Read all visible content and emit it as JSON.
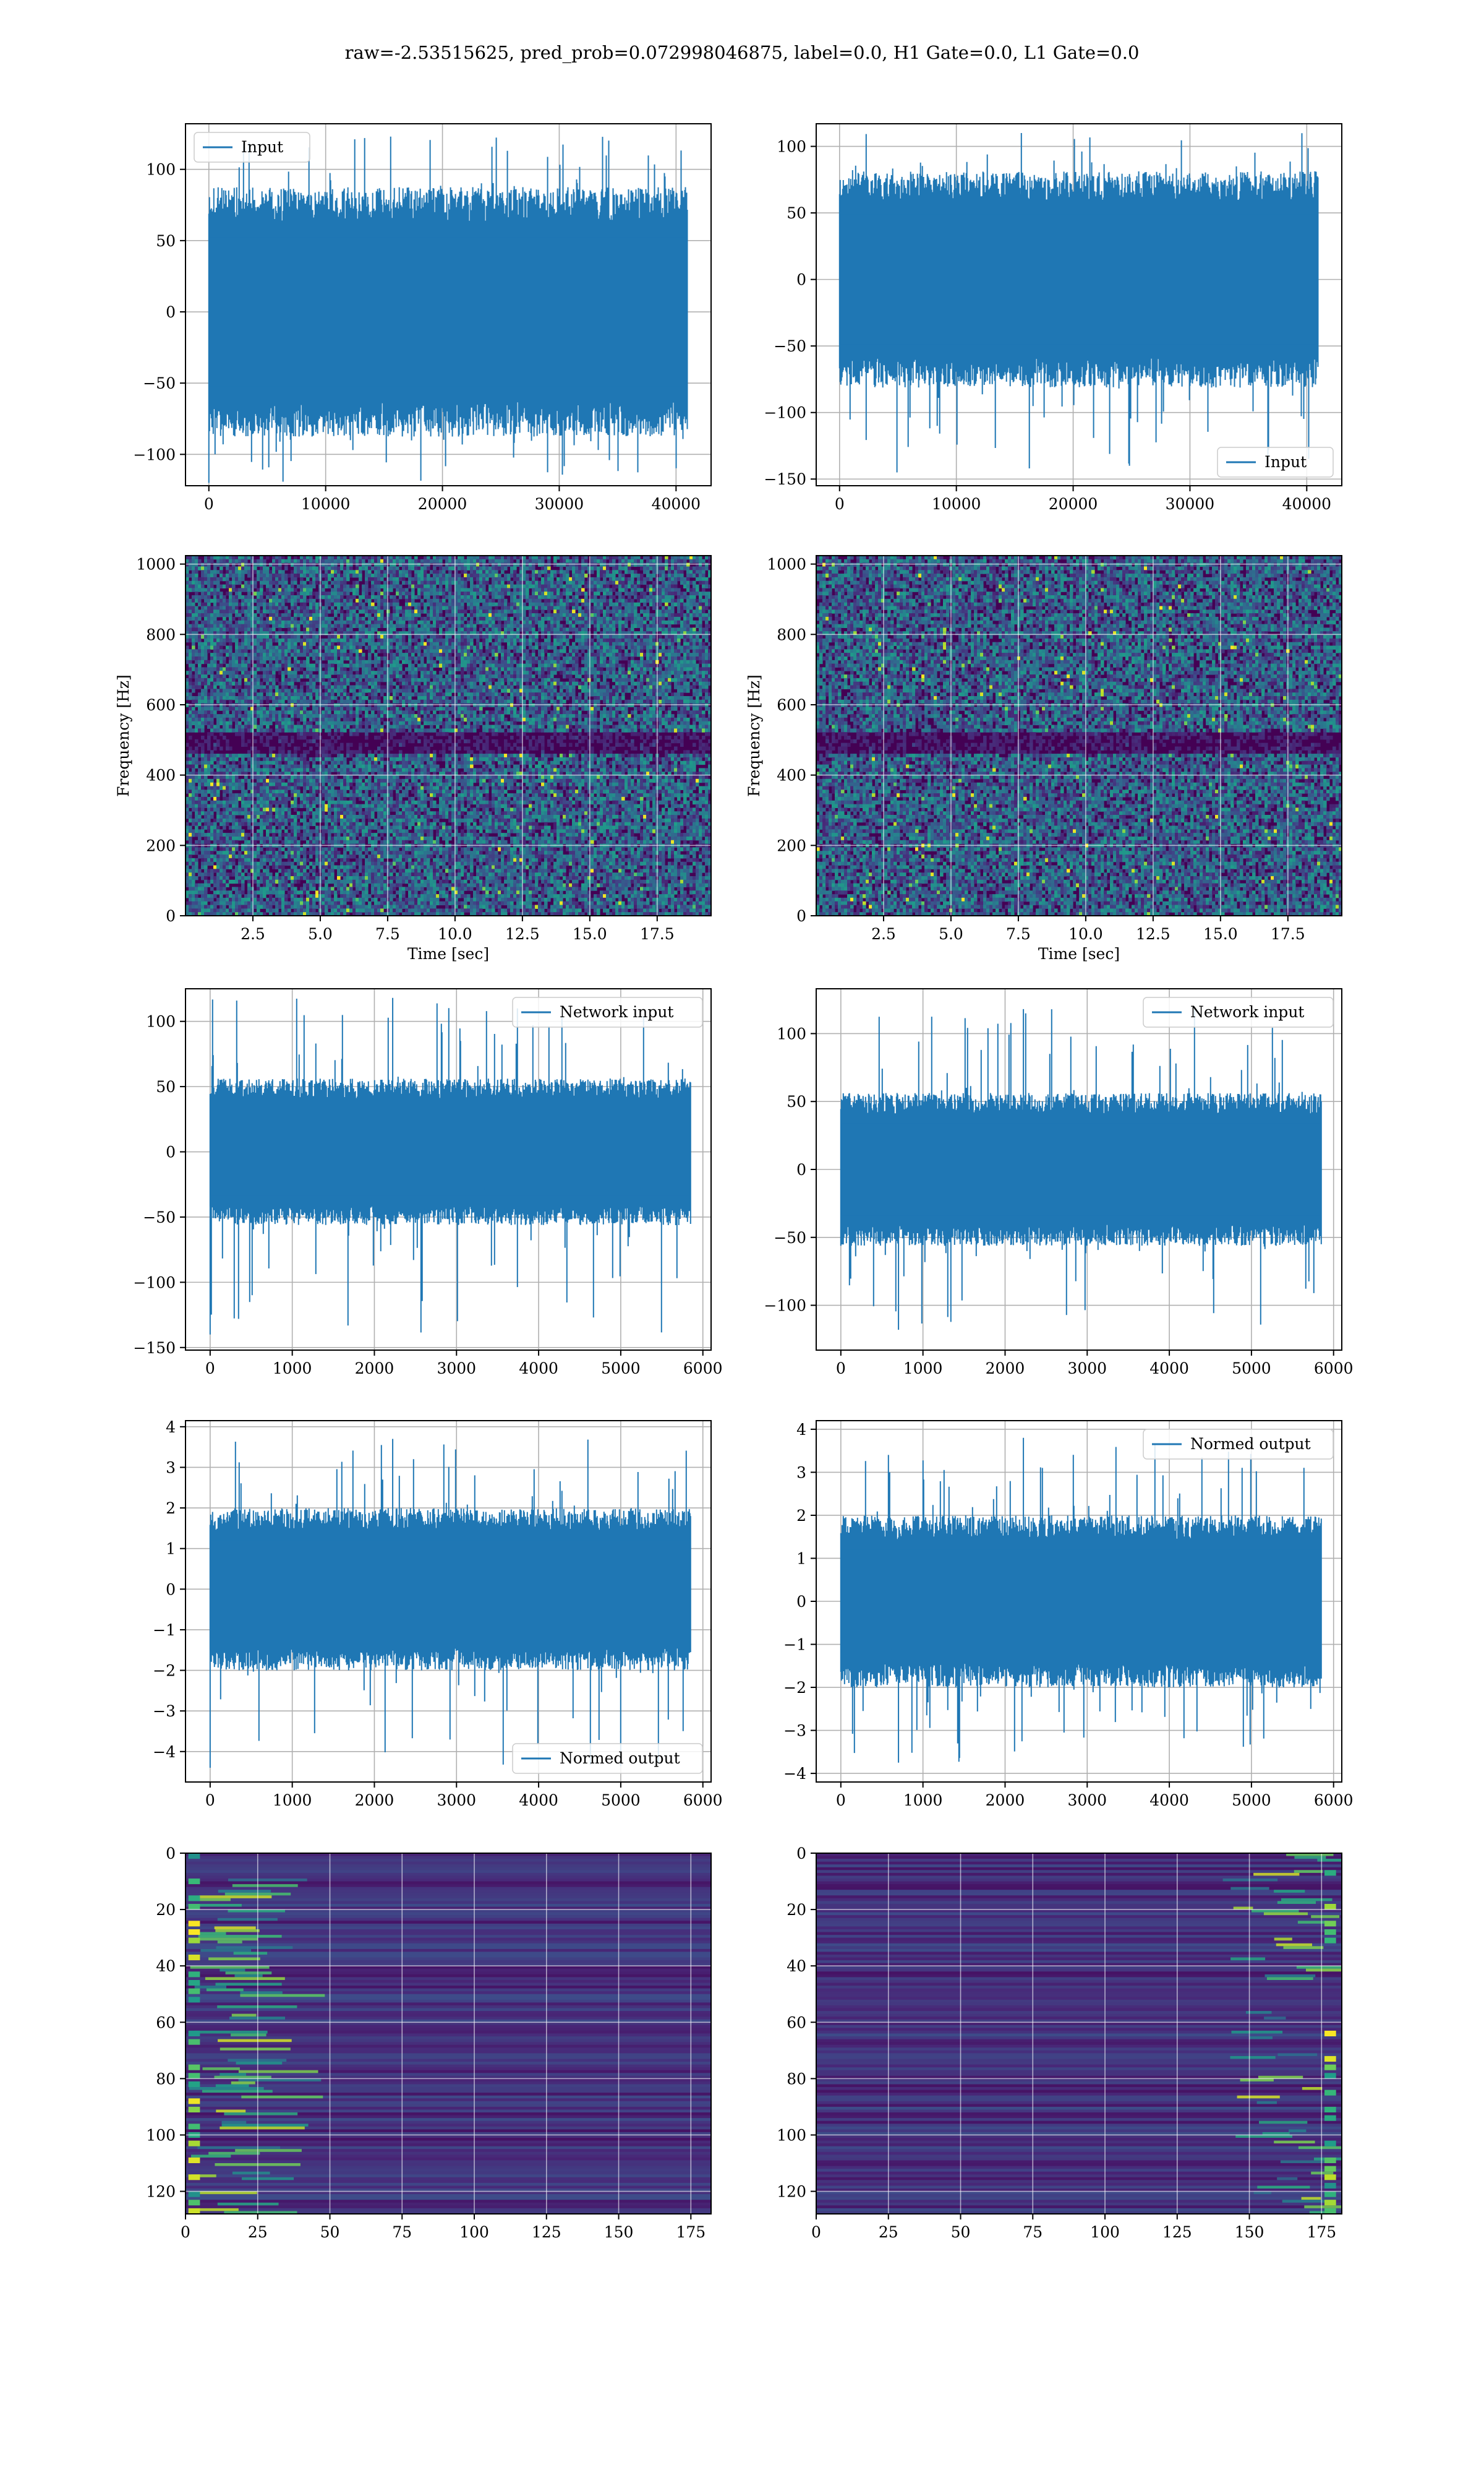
{
  "page": {
    "title": "raw=-2.53515625, pred_prob=0.072998046875, label=0.0, H1 Gate=0.0, L1 Gate=0.0"
  },
  "colors": {
    "series": "#1f77b4",
    "grid": "#b0b0b0",
    "viridis_low": "#440154",
    "viridis_mid": "#21918c",
    "viridis_high": "#fde725"
  },
  "chart_data": [
    {
      "id": "p1",
      "type": "line",
      "row": 1,
      "col": 1,
      "legend": "Input",
      "legend_loc": "upper-left",
      "xlim": [
        -2000,
        43000
      ],
      "ylim": [
        -122,
        132
      ],
      "xticks": [
        0,
        10000,
        20000,
        30000,
        40000
      ],
      "xtick_labels": [
        "0",
        "10000",
        "20000",
        "30000",
        "40000"
      ],
      "yticks": [
        -100,
        -50,
        0,
        50,
        100
      ],
      "ytick_labels": [
        "−100",
        "−50",
        "0",
        "50",
        "100"
      ],
      "signal": {
        "x_max": 40960,
        "core_amp": 70,
        "peak_max": 123,
        "peak_min": -120,
        "seed": 11
      }
    },
    {
      "id": "p2",
      "type": "line",
      "row": 1,
      "col": 2,
      "legend": "Input",
      "legend_loc": "lower-right",
      "xlim": [
        -2000,
        43000
      ],
      "ylim": [
        -155,
        117
      ],
      "xticks": [
        0,
        10000,
        20000,
        30000,
        40000
      ],
      "xtick_labels": [
        "0",
        "10000",
        "20000",
        "30000",
        "40000"
      ],
      "yticks": [
        -150,
        -100,
        -50,
        0,
        50,
        100
      ],
      "ytick_labels": [
        "−150",
        "−100",
        "−50",
        "0",
        "50",
        "100"
      ],
      "signal": {
        "x_max": 40960,
        "core_amp": 65,
        "peak_max": 110,
        "peak_min": -145,
        "seed": 23
      }
    },
    {
      "id": "p3",
      "type": "heatmap",
      "row": 2,
      "col": 1,
      "xlabel": "Time [sec]",
      "ylabel": "Frequency [Hz]",
      "xlim": [
        0.0,
        19.5
      ],
      "ylim": [
        0,
        1024
      ],
      "xticks": [
        2.5,
        5.0,
        7.5,
        10.0,
        12.5,
        15.0,
        17.5
      ],
      "xtick_labels": [
        "2.5",
        "5.0",
        "7.5",
        "10.0",
        "12.5",
        "15.0",
        "17.5"
      ],
      "yticks": [
        0,
        200,
        400,
        600,
        800,
        1000
      ],
      "ytick_labels": [
        "0",
        "200",
        "400",
        "600",
        "800",
        "1000"
      ],
      "dark_band": [
        470,
        530
      ],
      "y_direction": "up",
      "pattern": "spectrogram",
      "seed": 5
    },
    {
      "id": "p4",
      "type": "heatmap",
      "row": 2,
      "col": 2,
      "xlabel": "Time [sec]",
      "ylabel": "Frequency [Hz]",
      "xlim": [
        0.0,
        19.5
      ],
      "ylim": [
        0,
        1024
      ],
      "xticks": [
        2.5,
        5.0,
        7.5,
        10.0,
        12.5,
        15.0,
        17.5
      ],
      "xtick_labels": [
        "2.5",
        "5.0",
        "7.5",
        "10.0",
        "12.5",
        "15.0",
        "17.5"
      ],
      "yticks": [
        0,
        200,
        400,
        600,
        800,
        1000
      ],
      "ytick_labels": [
        "0",
        "200",
        "400",
        "600",
        "800",
        "1000"
      ],
      "dark_band": [
        470,
        530
      ],
      "y_direction": "up",
      "pattern": "spectrogram",
      "seed": 9
    },
    {
      "id": "p5",
      "type": "line",
      "row": 3,
      "col": 1,
      "legend": "Network input",
      "legend_loc": "upper-right",
      "xlim": [
        -300,
        6100
      ],
      "ylim": [
        -152,
        125
      ],
      "xticks": [
        0,
        1000,
        2000,
        3000,
        4000,
        5000,
        6000
      ],
      "xtick_labels": [
        "0",
        "1000",
        "2000",
        "3000",
        "4000",
        "5000",
        "6000"
      ],
      "yticks": [
        -150,
        -100,
        -50,
        0,
        50,
        100
      ],
      "ytick_labels": [
        "−150",
        "−100",
        "−50",
        "0",
        "50",
        "100"
      ],
      "signal": {
        "x_max": 5850,
        "core_amp": 45,
        "peak_max": 118,
        "peak_min": -140,
        "seed": 31
      }
    },
    {
      "id": "p6",
      "type": "line",
      "row": 3,
      "col": 2,
      "legend": "Network input",
      "legend_loc": "upper-right",
      "xlim": [
        -300,
        6100
      ],
      "ylim": [
        -133,
        133
      ],
      "xticks": [
        0,
        1000,
        2000,
        3000,
        4000,
        5000,
        6000
      ],
      "xtick_labels": [
        "0",
        "1000",
        "2000",
        "3000",
        "4000",
        "5000",
        "6000"
      ],
      "yticks": [
        -100,
        -50,
        0,
        50,
        100
      ],
      "ytick_labels": [
        "−100",
        "−50",
        "0",
        "50",
        "100"
      ],
      "signal": {
        "x_max": 5850,
        "core_amp": 45,
        "peak_max": 118,
        "peak_min": -118,
        "seed": 41
      }
    },
    {
      "id": "p7",
      "type": "line",
      "row": 4,
      "col": 1,
      "legend": "Normed output",
      "legend_loc": "lower-right",
      "xlim": [
        -300,
        6100
      ],
      "ylim": [
        -4.75,
        4.15
      ],
      "xticks": [
        0,
        1000,
        2000,
        3000,
        4000,
        5000,
        6000
      ],
      "xtick_labels": [
        "0",
        "1000",
        "2000",
        "3000",
        "4000",
        "5000",
        "6000"
      ],
      "yticks": [
        -4,
        -3,
        -2,
        -1,
        0,
        1,
        2,
        3,
        4
      ],
      "ytick_labels": [
        "−4",
        "−3",
        "−2",
        "−1",
        "0",
        "1",
        "2",
        "3",
        "4"
      ],
      "signal": {
        "x_max": 5850,
        "core_amp": 1.6,
        "peak_max": 3.7,
        "peak_min": -4.4,
        "seed": 53
      }
    },
    {
      "id": "p8",
      "type": "line",
      "row": 4,
      "col": 2,
      "legend": "Normed output",
      "legend_loc": "upper-right",
      "xlim": [
        -300,
        6100
      ],
      "ylim": [
        -4.2,
        4.2
      ],
      "xticks": [
        0,
        1000,
        2000,
        3000,
        4000,
        5000,
        6000
      ],
      "xtick_labels": [
        "0",
        "1000",
        "2000",
        "3000",
        "4000",
        "5000",
        "6000"
      ],
      "yticks": [
        -4,
        -3,
        -2,
        -1,
        0,
        1,
        2,
        3,
        4
      ],
      "ytick_labels": [
        "−4",
        "−3",
        "−2",
        "−1",
        "0",
        "1",
        "2",
        "3",
        "4"
      ],
      "signal": {
        "x_max": 5850,
        "core_amp": 1.6,
        "peak_max": 3.8,
        "peak_min": -3.75,
        "seed": 67
      }
    },
    {
      "id": "p9",
      "type": "heatmap",
      "row": 5,
      "col": 1,
      "xlim": [
        0,
        182
      ],
      "ylim": [
        128,
        0
      ],
      "xticks": [
        0,
        25,
        50,
        75,
        100,
        125,
        150,
        175
      ],
      "xtick_labels": [
        "0",
        "25",
        "50",
        "75",
        "100",
        "125",
        "150",
        "175"
      ],
      "yticks": [
        0,
        20,
        40,
        60,
        80,
        100,
        120
      ],
      "ytick_labels": [
        "0",
        "20",
        "40",
        "60",
        "80",
        "100",
        "120"
      ],
      "y_direction": "down",
      "pattern": "features-left",
      "seed": 77
    },
    {
      "id": "p10",
      "type": "heatmap",
      "row": 5,
      "col": 2,
      "xlim": [
        0,
        182
      ],
      "ylim": [
        128,
        0
      ],
      "xticks": [
        0,
        25,
        50,
        75,
        100,
        125,
        150,
        175
      ],
      "xtick_labels": [
        "0",
        "25",
        "50",
        "75",
        "100",
        "125",
        "150",
        "175"
      ],
      "yticks": [
        0,
        20,
        40,
        60,
        80,
        100,
        120
      ],
      "ytick_labels": [
        "0",
        "20",
        "40",
        "60",
        "80",
        "100",
        "120"
      ],
      "y_direction": "down",
      "pattern": "features-right",
      "seed": 83
    }
  ]
}
